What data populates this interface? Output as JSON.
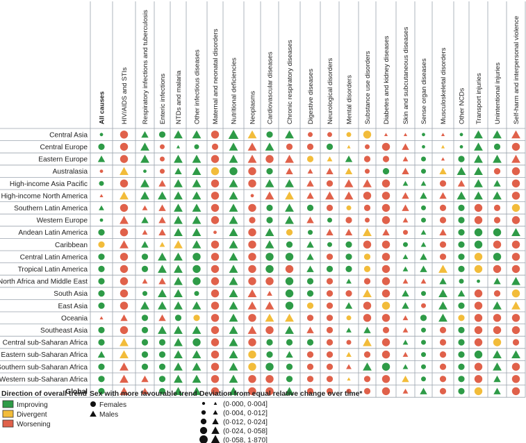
{
  "chart_data": {
    "type": "table",
    "columns": [
      "All causes",
      "HIV/AIDS and STIs",
      "Respiratory infections and tuberculosis",
      "Enteric infections",
      "NTDs and malaria",
      "Other infectious diseases",
      "Maternal and neonatal disorders",
      "Nutritional deficiencies",
      "Neoplasms",
      "Cardiovascular diseases",
      "Chronic respiratory diseases",
      "Digestive diseases",
      "Neurological disorders",
      "Mental disorders",
      "Substance use disorders",
      "Diabetes and kidney diseases",
      "Skin and subcutaneous diseases",
      "Sense organ diseases",
      "Musculoskeletal disorders",
      "Other NCDs",
      "Transport injuries",
      "Unintentional injuries",
      "Self-harm and interpersonal violence"
    ],
    "rows": [
      "Central Asia",
      "Central Europe",
      "Eastern Europe",
      "Australasia",
      "High-income Asia Pacific",
      "High-income North America",
      "Southern Latin America",
      "Western Europe",
      "Andean Latin America",
      "Caribbean",
      "Central Latin America",
      "Tropical Latin America",
      "North Africa and Middle East",
      "South Asia",
      "East Asia",
      "Oceania",
      "Southeast Asia",
      "Central sub-Saharan Africa",
      "Eastern sub-Saharan Africa",
      "Southern sub-Saharan Africa",
      "Western sub-Saharan Africa",
      "Global"
    ],
    "bold_rows": [
      "Global"
    ],
    "bold_columns": [
      "All causes"
    ],
    "encoding": "each cell = trend code (I=Improving, D=Divergent, W=Worsening) + sex code (f=Females as circle, m=Males as triangle) + size bin 1-5",
    "cells": [
      [
        "If1",
        "Wf4",
        "Im3",
        "If3",
        "Im4",
        "Im4",
        "Wf4",
        "Im5",
        "Dm4",
        "If3",
        "Im4",
        "Wf2",
        "Wf2",
        "Df2",
        "Df4",
        "Wm1",
        "Wm1",
        "If1",
        "Wm1",
        "If1",
        "Im4",
        "Im4",
        "Wm4"
      ],
      [
        "If3",
        "Wf4",
        "Im4",
        "Wf2",
        "Im1",
        "If2",
        "Wf3",
        "Im4",
        "Wm4",
        "Im4",
        "Wf3",
        "Wf3",
        "If3",
        "Dm1",
        "Wf2",
        "Wf4",
        "Wm3",
        "If1",
        "Dm1",
        "If1",
        "Im4",
        "If3",
        "Wf4"
      ],
      [
        "Im3",
        "Wf4",
        "Im4",
        "Wf2",
        "Im4",
        "Im4",
        "Wf4",
        "Im4",
        "Wm4",
        "Wf4",
        "Wm4",
        "Df3",
        "Dm2",
        "Im3",
        "Wf3",
        "Wf3",
        "Wm2",
        "If2",
        "Wm1",
        "If3",
        "Im4",
        "Im4",
        "Wm4"
      ],
      [
        "Wf1",
        "Dm4",
        "If1",
        "Wf2",
        "Im3",
        "Im4",
        "Df4",
        "If4",
        "Wf4",
        "If3",
        "Wm3",
        "Wm2",
        "Wm3",
        "Dm3",
        "Wf2",
        "If3",
        "Wm3",
        "If2",
        "Dm3",
        "Im4",
        "Im4",
        "Wf3",
        "Wf4"
      ],
      [
        "If2",
        "Wf4",
        "Im4",
        "Wm3",
        "Im4",
        "Im4",
        "Wf4",
        "Im4",
        "Wf4",
        "Im4",
        "Im4",
        "Wm3",
        "Wf3",
        "Wm4",
        "Wm4",
        "Wf4",
        "Im2",
        "Im2",
        "Wf3",
        "Wm3",
        "Im4",
        "Im3",
        "Wf4"
      ],
      [
        "Wm1",
        "Dm4",
        "Im4",
        "Im4",
        "Im4",
        "Im4",
        "Wf4",
        "Im4",
        "Wf1",
        "Wm4",
        "Dm4",
        "Wm3",
        "Wm4",
        "Wm4",
        "Wf4",
        "Wf4",
        "Wm3",
        "Im3",
        "Wm3",
        "Im4",
        "Im4",
        "Im4",
        "Wf4"
      ],
      [
        "Im2",
        "Wf4",
        "Wm2",
        "Wm3",
        "Im4",
        "Im4",
        "Wf4",
        "Im4",
        "Wf4",
        "If3",
        "Im4",
        "If3",
        "Wf3",
        "Df2",
        "Wf3",
        "Wf4",
        "Wm3",
        "If2",
        "Wf3",
        "If3",
        "Wf4",
        "Wf3",
        "Df4"
      ],
      [
        "If1",
        "Wm4",
        "Im3",
        "Wm3",
        "Im4",
        "Im4",
        "Wf4",
        "Im4",
        "Wf3",
        "If3",
        "Im4",
        "Wm3",
        "If2",
        "Wf3",
        "Wf2",
        "Wf4",
        "Wm2",
        "If2",
        "Wf3",
        "If3",
        "Wf4",
        "Wf3",
        "Wf4"
      ],
      [
        "If3",
        "Wf4",
        "Wm2",
        "Wm3",
        "Im4",
        "Im4",
        "Wf1",
        "Im4",
        "Wf4",
        "Im4",
        "Df3",
        "If2",
        "Wm3",
        "Wm3",
        "Dm4",
        "Wm3",
        "Wf2",
        "Im2",
        "Wm3",
        "If3",
        "If4",
        "If4",
        "Im4"
      ],
      [
        "Df3",
        "Wm4",
        "Im3",
        "Dm2",
        "Dm4",
        "Im4",
        "Wf4",
        "Im4",
        "Wf4",
        "Im4",
        "If3",
        "Im3",
        "If2",
        "If3",
        "Wf4",
        "Wf4",
        "If2",
        "Im2",
        "Wf3",
        "If3",
        "If4",
        "Wf4",
        "Wf4"
      ],
      [
        "If3",
        "Wf4",
        "If3",
        "Im4",
        "Im4",
        "If4",
        "Wf4",
        "Im4",
        "Wf4",
        "If4",
        "If4",
        "Im3",
        "Wf3",
        "If3",
        "Df3",
        "Wf4",
        "Im2",
        "Im3",
        "Wf3",
        "If3",
        "Df4",
        "If4",
        "Wf4"
      ],
      [
        "If3",
        "Wf4",
        "If3",
        "Im4",
        "Im4",
        "If4",
        "Wf4",
        "Im4",
        "Wf4",
        "If4",
        "Wf4",
        "Im3",
        "If3",
        "If3",
        "Df3",
        "Wf4",
        "Im2",
        "Im3",
        "Dm4",
        "If3",
        "Df4",
        "Wf4",
        "Wf4"
      ],
      [
        "If3",
        "Wf4",
        "Wm2",
        "Wm3",
        "Im4",
        "If4",
        "Wf4",
        "Im4",
        "Wf4",
        "Wf4",
        "If4",
        "If3",
        "Wf3",
        "Im2",
        "Wf3",
        "Wf4",
        "Wm2",
        "Wm2",
        "Im3",
        "If2",
        "If1",
        "Im3",
        "Im4"
      ],
      [
        "If3",
        "Wf4",
        "If2",
        "Im4",
        "Im4",
        "If2",
        "Wf4",
        "Im4",
        "Wm4",
        "Wm2",
        "If4",
        "If3",
        "Wf3",
        "Wf3",
        "Dm4",
        "Wf4",
        "Im3",
        "If2",
        "Im4",
        "Im3",
        "Wf4",
        "Wf3",
        "Df4"
      ],
      [
        "If3",
        "Wf4",
        "Im4",
        "Im4",
        "Im4",
        "Im4",
        "Wf4",
        "Im4",
        "Wm4",
        "Wm4",
        "If4",
        "Df3",
        "Wf3",
        "Im3",
        "Wf4",
        "Df4",
        "Im3",
        "Wf2",
        "Im4",
        "If3",
        "Wf4",
        "Im4",
        "Dm4"
      ],
      [
        "Wm1",
        "Wm3",
        "If3",
        "Wm3",
        "If3",
        "Df3",
        "Wf4",
        "Im4",
        "Wf4",
        "Dm4",
        "Dm4",
        "Wf3",
        "Wf3",
        "Df2",
        "Wf4",
        "Wf4",
        "Wm2",
        "If3",
        "Im4",
        "Df3",
        "Wf4",
        "Wf4",
        "Wf4"
      ],
      [
        "If3",
        "Wf4",
        "If3",
        "Im4",
        "Im4",
        "Im4",
        "Wf4",
        "Im4",
        "Wm4",
        "Wf4",
        "Im4",
        "Wm3",
        "Wf3",
        "Im2",
        "Im3",
        "Wf3",
        "Wm2",
        "If2",
        "Wf3",
        "If3",
        "Wf4",
        "Wf4",
        "Wf4"
      ],
      [
        "If3",
        "Dm4",
        "If3",
        "If3",
        "Im4",
        "If4",
        "Wf4",
        "Im4",
        "Wf4",
        "If3",
        "If3",
        "If3",
        "Wf3",
        "Wf2",
        "Dm4",
        "Wf4",
        "Im2",
        "If2",
        "Wf3",
        "If3",
        "Wf4",
        "Df4",
        "Wf3"
      ],
      [
        "Im3",
        "Dm4",
        "If3",
        "If3",
        "Im4",
        "Im4",
        "Wf4",
        "Im4",
        "Df4",
        "If3",
        "Im3",
        "Wf3",
        "Wf3",
        "Dm2",
        "Wf3",
        "Wf4",
        "Wm2",
        "If2",
        "Wf3",
        "If3",
        "If4",
        "Im4",
        "Im4"
      ],
      [
        "If3",
        "Wm4",
        "If3",
        "If3",
        "Im4",
        "Im4",
        "Wf4",
        "Im4",
        "Df4",
        "If4",
        "If3",
        "Wf3",
        "Wf3",
        "Wm2",
        "Im4",
        "If4",
        "Im2",
        "If2",
        "Wf3",
        "If3",
        "Wf4",
        "Im4",
        "Wf4"
      ],
      [
        "If3",
        "Wm4",
        "Wm3",
        "If3",
        "Im4",
        "Im4",
        "Wf4",
        "Im4",
        "Wf4",
        "Wf4",
        "If3",
        "Wf3",
        "Wf3",
        "Dm1",
        "Wf3",
        "Wf4",
        "Dm3",
        "If2",
        "Wf3",
        "If3",
        "Wf4",
        "Im3",
        "Wf4"
      ],
      [
        "If3",
        "Wm4",
        "Wm3",
        "If3",
        "Im4",
        "Im4",
        "Wf4",
        "Im4",
        "Wf4",
        "Wf4",
        "Im4",
        "Wf3",
        "Wf3",
        "Wf2",
        "Wf3",
        "Wf4",
        "Wm2",
        "Im3",
        "Wf3",
        "If3",
        "Df4",
        "Im3",
        "Wf4"
      ]
    ],
    "legend": {
      "trend_title": "Direction of overall trend",
      "trend": [
        {
          "code": "I",
          "label": "Improving",
          "color": "#2e9b47"
        },
        {
          "code": "D",
          "label": "Divergent",
          "color": "#f2bc3a"
        },
        {
          "code": "W",
          "label": "Worsening",
          "color": "#e0614a"
        }
      ],
      "sex_title": "Sex with more favourable trend",
      "sex": [
        {
          "code": "f",
          "label": "Females",
          "shape": "circle"
        },
        {
          "code": "m",
          "label": "Males",
          "shape": "triangle"
        }
      ],
      "size_title": "Deviation from equal relative change over time*",
      "sizes": [
        "(0·000, 0·004]",
        "(0·004, 0·012]",
        "(0·012, 0·024]",
        "(0·024, 0·058]",
        "(0·058, 1·870]"
      ]
    }
  }
}
